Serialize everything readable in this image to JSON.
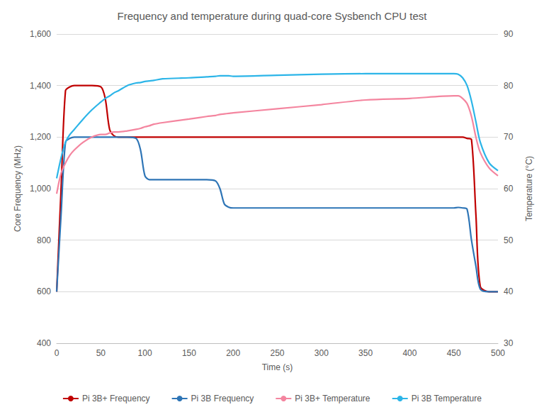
{
  "chart_data": {
    "type": "line",
    "title": "Frequency and temperature during quad-core Sysbench CPU test",
    "xlabel": "Time (s)",
    "ylabel": "Core Frequency (MHz)",
    "y2label": "Temperature (°C)",
    "x": [
      0,
      5,
      10,
      15,
      20,
      30,
      40,
      50,
      55,
      60,
      65,
      70,
      80,
      90,
      95,
      100,
      105,
      110,
      120,
      150,
      170,
      180,
      185,
      190,
      195,
      200,
      250,
      300,
      350,
      400,
      450,
      455,
      460,
      465,
      470,
      475,
      480,
      490,
      500
    ],
    "series": [
      {
        "name": "Pi 3B+ Frequency",
        "color": "#C00000",
        "values": [
          600,
          1000,
          1380,
          1395,
          1400,
          1400,
          1400,
          1395,
          1350,
          1230,
          1205,
          1200,
          1200,
          1200,
          1200,
          1200,
          1200,
          1200,
          1200,
          1200,
          1200,
          1200,
          1200,
          1200,
          1200,
          1200,
          1200,
          1200,
          1200,
          1200,
          1200,
          1200,
          1200,
          1195,
          1190,
          900,
          620,
          600,
          600
        ]
      },
      {
        "name": "Pi 3B Frequency",
        "color": "#2E75B6",
        "values": [
          600,
          900,
          1180,
          1195,
          1200,
          1200,
          1200,
          1200,
          1200,
          1200,
          1200,
          1200,
          1200,
          1195,
          1150,
          1050,
          1035,
          1035,
          1035,
          1035,
          1035,
          1030,
          1000,
          940,
          928,
          925,
          925,
          925,
          925,
          925,
          925,
          927,
          925,
          920,
          800,
          700,
          610,
          600,
          600
        ]
      },
      {
        "name": "Pi 3B+ Temperature",
        "color": "#F4859F",
        "axis": "y2",
        "values": [
          59,
          63,
          65,
          66.5,
          67.5,
          69,
          70,
          70.5,
          70.5,
          70.8,
          71,
          71,
          71.2,
          71.5,
          71.7,
          72,
          72.2,
          72.5,
          72.8,
          73.5,
          74,
          74.2,
          74.4,
          74.5,
          74.6,
          74.7,
          75.5,
          76.3,
          77.2,
          77.5,
          78,
          78,
          77.5,
          76.5,
          74,
          70,
          67,
          64,
          62.5
        ]
      },
      {
        "name": "Pi 3B Temperature",
        "color": "#2CB5E8",
        "axis": "y2",
        "values": [
          62,
          66,
          69,
          70.5,
          71.5,
          73.5,
          75.3,
          76.8,
          77.5,
          78,
          78.6,
          79,
          80,
          80.5,
          80.6,
          80.8,
          80.9,
          81,
          81.3,
          81.5,
          81.7,
          81.8,
          81.9,
          81.9,
          81.9,
          81.8,
          82,
          82.2,
          82.3,
          82.3,
          82.3,
          82.2,
          81.5,
          80,
          77,
          73,
          69,
          65,
          63.5
        ]
      }
    ],
    "xlim": [
      0,
      500
    ],
    "xticks": [
      0,
      50,
      100,
      150,
      200,
      250,
      300,
      350,
      400,
      450,
      500
    ],
    "ylim": [
      400,
      1600
    ],
    "yticks": [
      400,
      600,
      800,
      1000,
      1200,
      1400,
      1600
    ],
    "y2lim": [
      30,
      90
    ],
    "y2ticks": [
      30,
      40,
      50,
      60,
      70,
      80,
      90
    ],
    "grid": true,
    "legend": "bottom"
  }
}
